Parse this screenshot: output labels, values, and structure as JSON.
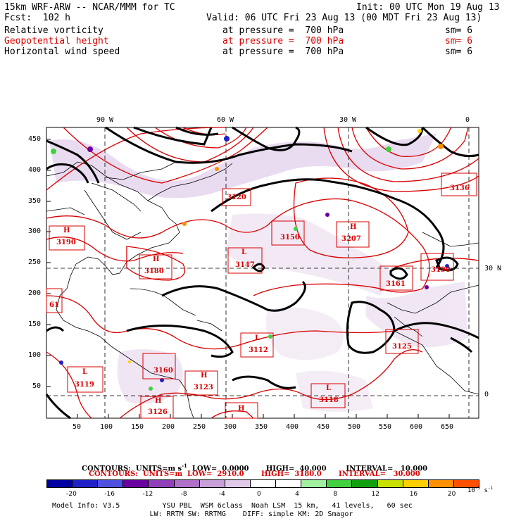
{
  "header": {
    "title": "15km WRF-ARW -- NCAR/MMM for TC",
    "init": "Init: 00 UTC Mon 19 Aug 13",
    "fcst": "Fcst:  102 h",
    "valid": "Valid: 06 UTC Fri 23 Aug 13 (00 MDT Fri 23 Aug 13)",
    "fields": [
      {
        "name": "Relative vorticity",
        "level": "at pressure =  700 hPa",
        "sm": "sm= 6",
        "color": "#000000"
      },
      {
        "name": "Geopotential height",
        "level": "at pressure =  700 hPa",
        "sm": "sm= 6",
        "color": "#d80000"
      },
      {
        "name": "Horizontal wind speed",
        "level": "at pressure =  700 hPa",
        "sm": "sm= 6",
        "color": "#000000"
      }
    ]
  },
  "map": {
    "top_lon_labels": [
      "90 W",
      "60 W",
      "30 W",
      "0"
    ],
    "right_lat_labels": [
      "30 N",
      "0"
    ],
    "y_ticks": [
      "450",
      "400",
      "350",
      "300",
      "250",
      "200",
      "150",
      "100",
      "50"
    ],
    "x_ticks": [
      "50",
      "100",
      "150",
      "200",
      "250",
      "300",
      "350",
      "400",
      "450",
      "500",
      "550",
      "600",
      "650"
    ],
    "pressure_centers": [
      {
        "type": "H",
        "value": "3190"
      },
      {
        "type": "H",
        "value": "3180"
      },
      {
        "type": "L",
        "value": "3147"
      },
      {
        "type": "",
        "value": "3150"
      },
      {
        "type": "H",
        "value": "3207"
      },
      {
        "type": "",
        "value": "3120"
      },
      {
        "type": "",
        "value": "3136"
      },
      {
        "type": "",
        "value": "3161"
      },
      {
        "type": "",
        "value": "3190"
      },
      {
        "type": "L",
        "value": "3112"
      },
      {
        "type": "",
        "value": "3125"
      },
      {
        "type": "L",
        "value": "3119"
      },
      {
        "type": "",
        "value": "3160"
      },
      {
        "type": "H",
        "value": "3123"
      },
      {
        "type": "L",
        "value": "3118"
      },
      {
        "type": "H",
        "value": "3126"
      },
      {
        "type": "H",
        "value": ""
      },
      {
        "type": "",
        "value": "61"
      }
    ]
  },
  "contours": {
    "line1": "CONTOURS:  UNITS=m s",
    "line1_sup": "-1",
    "line1_rest": "  LOW=  0.0000       HIGH=  40.000        INTERVAL=   10.000",
    "line2": "CONTOURS:  UNITS=m  LOW=  2910.0       HIGH=  3180.0       INTERVAL=   30.000"
  },
  "colorbar": {
    "colors": [
      "#0000a0",
      "#2020c8",
      "#5050e0",
      "#6a00a0",
      "#9040b8",
      "#b070c8",
      "#c8a0d8",
      "#e0c8e8",
      "#ffffff",
      "#ffffff",
      "#a0f0a0",
      "#40d040",
      "#10a010",
      "#c8e000",
      "#ffd000",
      "#ff9000",
      "#ff5000"
    ],
    "labels": [
      "-20",
      "-16",
      "-12",
      "-8",
      "-4",
      "0",
      "4",
      "8",
      "12",
      "16",
      "20"
    ],
    "units": "10",
    "units_exp": "-5",
    "units_tail": " s",
    "units_tail_exp": "-1"
  },
  "model_info": {
    "line1": "Model Info: V3.5          YSU PBL  WSM 6class  Noah LSM  15 km,   41 levels,   60 sec",
    "line2": "                       LW: RRTM SW: RRTMG    DIFF: simple KM: 2D Smagor"
  }
}
